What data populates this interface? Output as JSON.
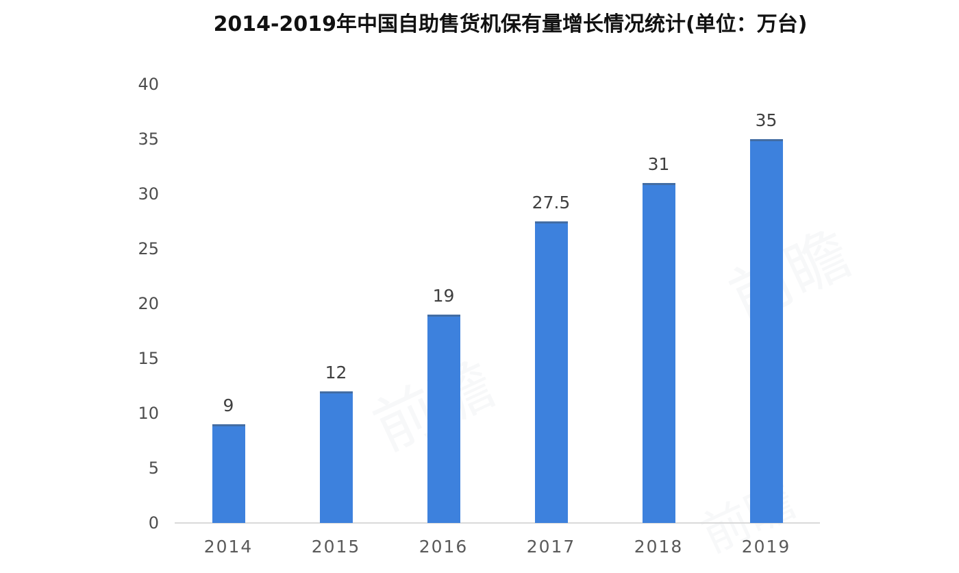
{
  "title": "2014-2019年中国自助售货机保有量增长情况统计(单位：万台)",
  "watermark_text": "前瞻",
  "chart_data": {
    "type": "bar",
    "title": "2014-2019年中国自助售货机保有量增长情况统计(单位：万台)",
    "categories": [
      "2014",
      "2015",
      "2016",
      "2017",
      "2018",
      "2019"
    ],
    "values": [
      9,
      12,
      19,
      27.5,
      31,
      35
    ],
    "value_labels": [
      "9",
      "12",
      "19",
      "27.5",
      "31",
      "35"
    ],
    "series_name": "自助售货机保有量",
    "xlabel": "",
    "ylabel": "",
    "unit": "万台",
    "ylim": [
      0,
      40
    ],
    "yticks": [
      0,
      5,
      10,
      15,
      20,
      25,
      30,
      35,
      40
    ],
    "grid": false,
    "legend_position": "none",
    "bar_color": "#3d81dd",
    "bar_top_edge_color": "#485c72",
    "value_label_color": "#3f3f3f",
    "tick_label_color": "#4d4d4d",
    "axis_line_color": "#d9d9d9",
    "title_color": "#111111",
    "background_color": "#ffffff"
  }
}
